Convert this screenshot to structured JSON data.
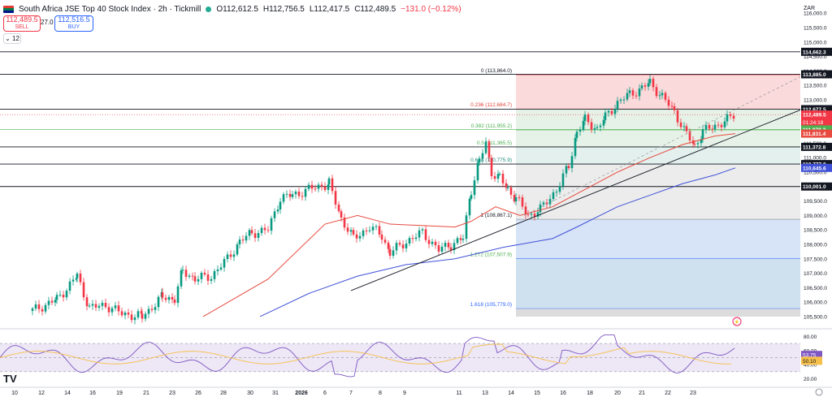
{
  "header": {
    "flag_icon": "south-africa-flag-icon",
    "title": "South Africa JSE Top 40 Stock Index · 2h · Tickmill",
    "status_color": "#22ab94",
    "open": "O112,612.5",
    "high": "H112,756.5",
    "low": "L112,417.5",
    "close": "C112,489.5",
    "change": "−131.0 (−0.12%)"
  },
  "trade": {
    "sell_price": "112,489.5",
    "sell_label": "SELL",
    "spread": "27.0",
    "buy_price": "112,516.5",
    "buy_label": "BUY"
  },
  "indicators_toggle": "12",
  "currency": "ZAR",
  "price_axis_labels": [
    "116,000.0",
    "115,500.0",
    "115,000.0",
    "114,500.0",
    "114,000.0",
    "113,500.0",
    "113,000.0",
    "112,500.0",
    "112,000.0",
    "111,500.0",
    "111,000.0",
    "110,500.0",
    "110,000.0",
    "109,500.0",
    "109,000.0",
    "108,500.0",
    "108,000.0",
    "107,500.0",
    "107,000.0",
    "106,500.0",
    "106,000.0",
    "105,500.0"
  ],
  "price_tags": {
    "level_114662": "114,662.3",
    "level_113885": "113,885.0",
    "level_112677": "112,677.5",
    "last_price": "112,489.5",
    "countdown": "01:24:18",
    "ema_fast": "111,978.2",
    "ema_slow_red": "111,831.4",
    "level_111372": "111,372.8",
    "level_110777": "110,777.8",
    "ma_blue": "110,645.6",
    "level_110001": "110,001.0"
  },
  "fib_labels": {
    "f0": "0 (113,864.0)",
    "f236": "0.236 (112,684.7)",
    "f382": "0.382 (111,955.2)",
    "f5": "0.5 (111,365.5)",
    "f618": "0.618 (110,775.9)",
    "f1": "1 (108,867.1)",
    "f1272": "1.272 (107,507.9)",
    "f1618": "1.618 (105,779.0)"
  },
  "rsi_axis_labels": [
    "80.00",
    "60.00",
    "40.00",
    "20.00"
  ],
  "rsi_tags": {
    "rsi": "53.75",
    "rsi_ma": "50.10"
  },
  "time_labels": [
    "10",
    "12",
    "14",
    "16",
    "19",
    "21",
    "23",
    "26",
    "28",
    "30",
    "31",
    "2026",
    "6",
    "7",
    "8",
    "9",
    "11",
    "13",
    "14",
    "15",
    "16",
    "18",
    "20",
    "21",
    "22",
    "23"
  ],
  "colors": {
    "up": "#089981",
    "down": "#f23645",
    "ma_red": "#e84a3f",
    "ma_blue": "#3f51d8",
    "rsi_line": "#7e57c2",
    "rsi_ma": "#f7c04a",
    "fib_top": "#fbdadb",
    "fib_green": "#e6f2e8",
    "fib_gray": "#ececec",
    "fib_blue": "#d7e3f7"
  },
  "tradingview_logo": "tradingview-logo",
  "alert_icon": "lightning-alert-icon"
}
